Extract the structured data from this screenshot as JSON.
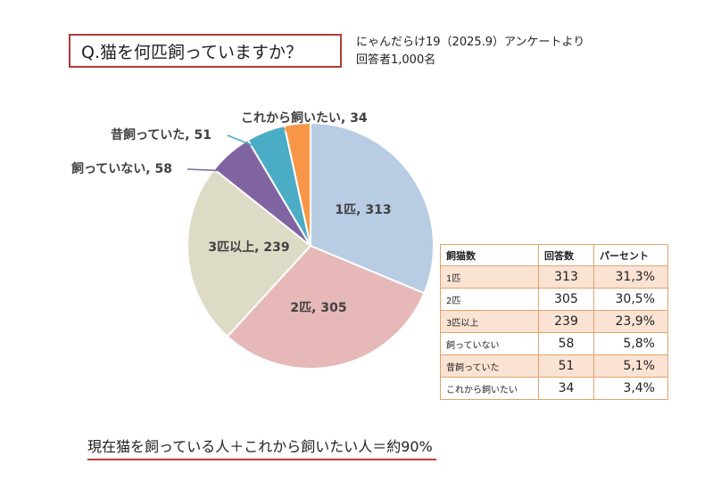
{
  "question": "Q.猫を何匹飼っていますか？",
  "source_line1": "にゃんだらけ19（2025.9）アンケートより",
  "source_line2": "回答者1,000名",
  "footer": "現在猫を飼っている人＋これから飼いたい人＝約90%",
  "colors": {
    "slices": [
      "#b8cce4",
      "#e6b9b8",
      "#dddac6",
      "#8064a2",
      "#4bacc6",
      "#f79646"
    ],
    "border": "#b23a3a",
    "table_border": "#e3a26c",
    "table_stripe": "#fbe3d3"
  },
  "chart_data": {
    "type": "pie",
    "slices": [
      {
        "label": "1匹",
        "value": 313
      },
      {
        "label": "2匹",
        "value": 305
      },
      {
        "label": "3匹以上",
        "value": 239
      },
      {
        "label": "飼っていない",
        "value": 58
      },
      {
        "label": "昔飼っていた",
        "value": 51
      },
      {
        "label": "これから飼いたい",
        "value": 34
      }
    ],
    "start_angle_deg": 0,
    "direction": "clockwise"
  },
  "table": {
    "headers": [
      "飼猫数",
      "回答数",
      "パーセント"
    ],
    "rows": [
      {
        "label": "1匹",
        "count": "313",
        "percent": "31,3%"
      },
      {
        "label": "2匹",
        "count": "305",
        "percent": "30,5%"
      },
      {
        "label": "3匹以上",
        "count": "239",
        "percent": "23,9%"
      },
      {
        "label": "飼っていない",
        "count": "58",
        "percent": "5,8%"
      },
      {
        "label": "昔飼っていた",
        "count": "51",
        "percent": "5,1%"
      },
      {
        "label": "これから飼いたい",
        "count": "34",
        "percent": "3,4%"
      }
    ]
  }
}
